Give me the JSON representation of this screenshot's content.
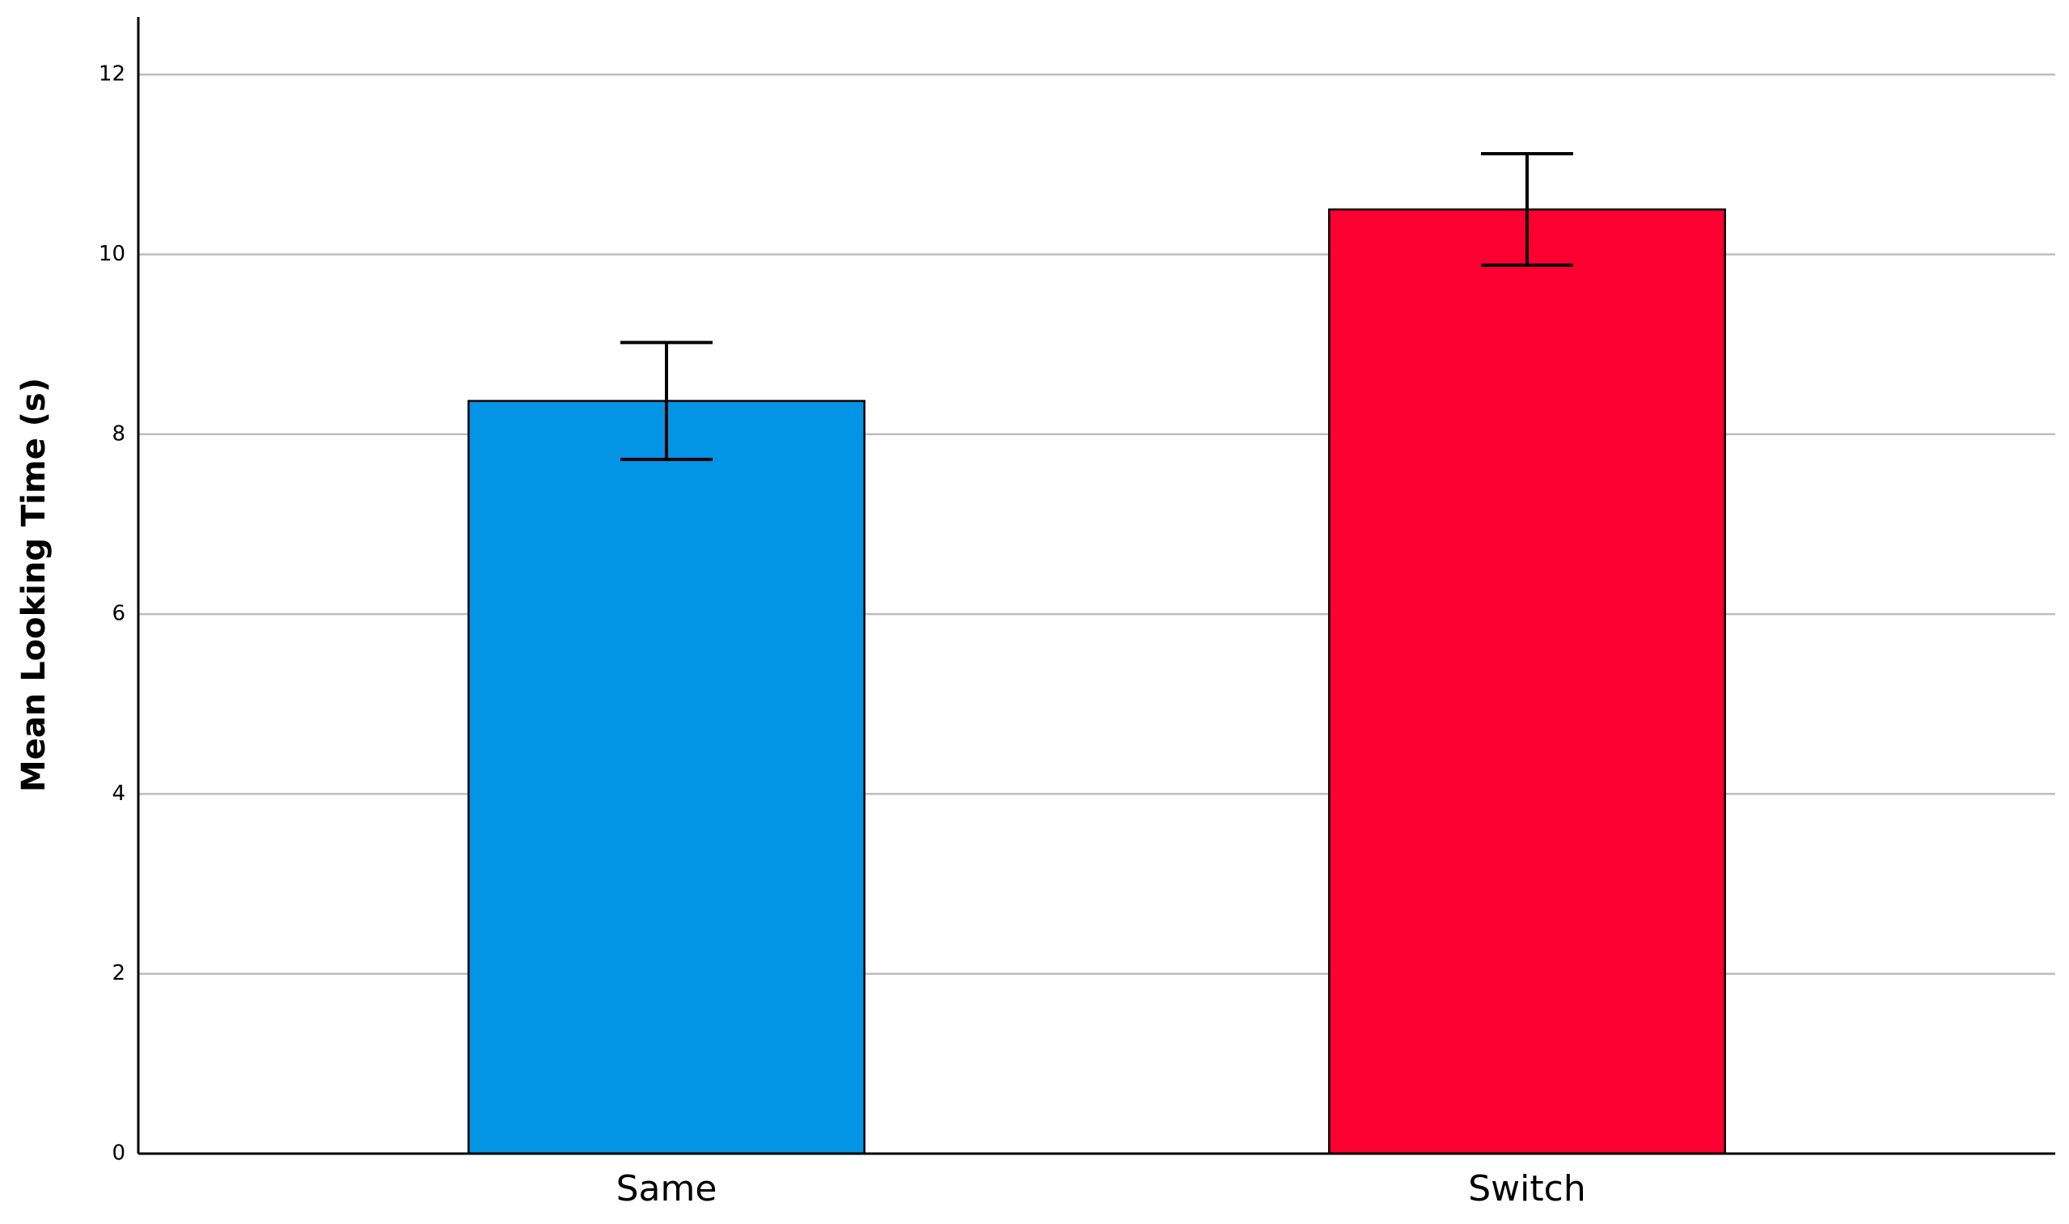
{
  "chart_data": {
    "type": "bar",
    "y_label": "Mean Looking Time (s)",
    "categories": [
      "Same",
      "Switch"
    ],
    "values": [
      8.37,
      10.5
    ],
    "errors": [
      0.65,
      0.62
    ],
    "colors": [
      "#0494e6",
      "#fb0030"
    ],
    "ylim": [
      0,
      12.64
    ],
    "yticks": [
      0,
      2,
      4,
      6,
      8,
      10,
      12
    ],
    "grid": true
  }
}
